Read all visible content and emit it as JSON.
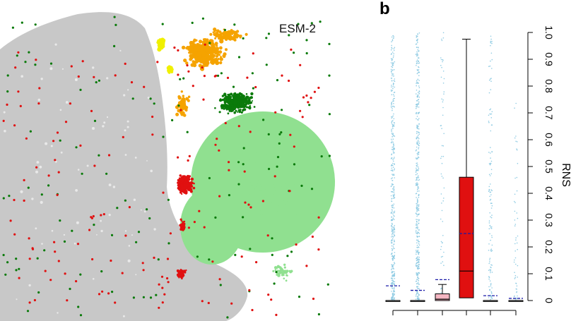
{
  "panel_b_letter": "b",
  "colors": {
    "grey": "#c8c8c8",
    "light_green": "#90e090",
    "dark_green": "#0a7a0a",
    "red": "#e01010",
    "orange": "#f5a300",
    "yellow": "#f0f000",
    "pink": "#f4b6c2",
    "jitter_blue": "#8fcbe3",
    "mean_blue": "#1a1aa8"
  },
  "chart_data": [
    {
      "type": "scatter",
      "title": "ESM-2",
      "xlabel": "",
      "ylabel": "",
      "clusters": [
        {
          "color": "grey",
          "role": "background"
        },
        {
          "color": "light_green",
          "role": "large cluster, right"
        },
        {
          "color": "dark_green",
          "role": "dense cluster, upper right, plus scattered points"
        },
        {
          "color": "orange",
          "role": "cluster, top"
        },
        {
          "color": "yellow",
          "role": "small cluster, top"
        },
        {
          "color": "red",
          "role": "dense cluster, middle, plus scattered points"
        }
      ]
    },
    {
      "type": "boxplot",
      "ylabel": "RNS",
      "yticks": [
        "0",
        "0.1",
        "0.2",
        "0.3",
        "0.4",
        "0.5",
        "0.6",
        "0.7",
        "0.8",
        "0.9",
        "1.0"
      ],
      "ylim": [
        0,
        1.0
      ],
      "grid": false,
      "groups": [
        {
          "min": 0,
          "q1": 0,
          "median": 0,
          "q3": 0,
          "max": 0,
          "mean": 0.055,
          "box_color": "#ffffff",
          "jitter": "dense",
          "jitter_max": 1.0
        },
        {
          "min": 0,
          "q1": 0,
          "median": 0,
          "q3": 0,
          "max": 0,
          "mean": 0.038,
          "box_color": "#ffffff",
          "jitter": "dense",
          "jitter_max": 1.0
        },
        {
          "min": 0,
          "q1": 0,
          "median": 0.005,
          "q3": 0.025,
          "max": 0.06,
          "mean": 0.078,
          "box_color": "#f4b6c2",
          "jitter": "sparse",
          "jitter_max": 1.0
        },
        {
          "min": 0,
          "q1": 0.01,
          "median": 0.11,
          "q3": 0.46,
          "max": 0.975,
          "mean": 0.25,
          "box_color": "#e01010",
          "jitter": "none",
          "jitter_max": 0
        },
        {
          "min": 0,
          "q1": 0,
          "median": 0,
          "q3": 0,
          "max": 0,
          "mean": 0.018,
          "box_color": "#ffffff",
          "jitter": "medium",
          "jitter_max": 0.99
        },
        {
          "min": 0,
          "q1": 0,
          "median": 0,
          "q3": 0,
          "max": 0,
          "mean": 0.008,
          "box_color": "#ffffff",
          "jitter": "sparse-low",
          "jitter_max": 0.75
        }
      ]
    }
  ]
}
